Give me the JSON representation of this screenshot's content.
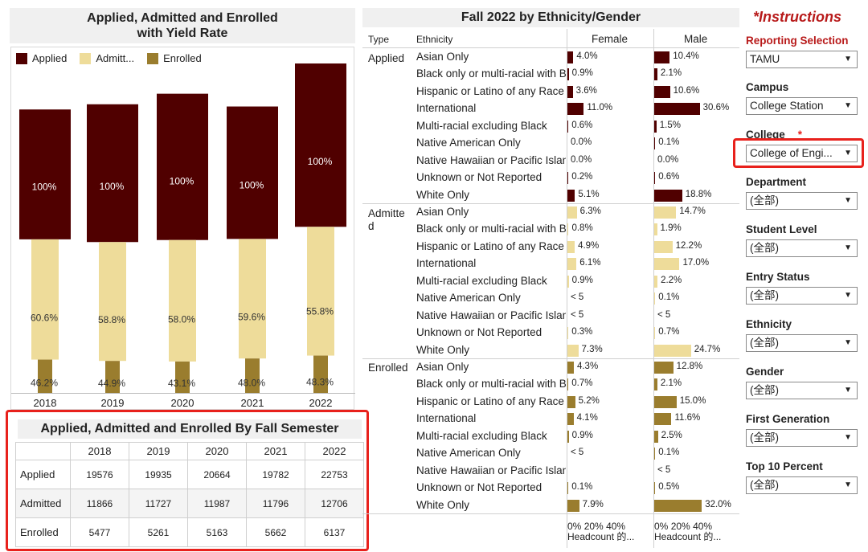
{
  "colors": {
    "applied": "#500000",
    "admitted": "#eedc9a",
    "enrolled": "#9a7d2e",
    "highlight": "#e8211c",
    "accent_red": "#b81a1a"
  },
  "left_chart": {
    "title_line1": "Applied, Admitted and Enrolled",
    "title_line2": "with Yield Rate",
    "legend": [
      "Applied",
      "Admitt...",
      "Enrolled"
    ]
  },
  "chart_data": [
    {
      "type": "bar",
      "title": "Applied, Admitted and Enrolled with Yield Rate",
      "categories": [
        "2018",
        "2019",
        "2020",
        "2021",
        "2022"
      ],
      "series": [
        {
          "name": "Applied",
          "values": [
            19576,
            19935,
            20664,
            19782,
            22753
          ],
          "labels": [
            "100%",
            "100%",
            "100%",
            "100%",
            "100%"
          ]
        },
        {
          "name": "Admitted",
          "values": [
            11866,
            11727,
            11987,
            11796,
            12706
          ],
          "labels": [
            "60.6%",
            "58.8%",
            "58.0%",
            "59.6%",
            "55.8%"
          ]
        },
        {
          "name": "Enrolled",
          "values": [
            5477,
            5261,
            5163,
            5662,
            6137
          ],
          "labels": [
            "46.2%",
            "44.9%",
            "43.1%",
            "48.0%",
            "48.3%"
          ]
        }
      ]
    },
    {
      "type": "bar",
      "title": "Fall 2022 by Ethnicity/Gender",
      "series_names": [
        "Female",
        "Male"
      ],
      "axis_ticks": [
        "0%",
        "20%",
        "40%"
      ],
      "axis_label": "Headcount 的...",
      "groups": [
        {
          "type": "Applied",
          "rows": [
            {
              "ethnicity": "Asian Only",
              "female": 4.0,
              "female_label": "4.0%",
              "male": 10.4,
              "male_label": "10.4%"
            },
            {
              "ethnicity": "Black only or multi-racial with Bl",
              "female": 0.9,
              "female_label": "0.9%",
              "male": 2.1,
              "male_label": "2.1%"
            },
            {
              "ethnicity": "Hispanic or Latino of any Race",
              "female": 3.6,
              "female_label": "3.6%",
              "male": 10.6,
              "male_label": "10.6%"
            },
            {
              "ethnicity": "International",
              "female": 11.0,
              "female_label": "11.0%",
              "male": 30.6,
              "male_label": "30.6%"
            },
            {
              "ethnicity": "Multi-racial excluding Black",
              "female": 0.6,
              "female_label": "0.6%",
              "male": 1.5,
              "male_label": "1.5%"
            },
            {
              "ethnicity": "Native American Only",
              "female": 0.0,
              "female_label": "0.0%",
              "male": 0.1,
              "male_label": "0.1%"
            },
            {
              "ethnicity": "Native Hawaiian or Pacific Islander",
              "female": 0.0,
              "female_label": "0.0%",
              "male": 0.0,
              "male_label": "0.0%"
            },
            {
              "ethnicity": "Unknown or Not Reported",
              "female": 0.2,
              "female_label": "0.2%",
              "male": 0.6,
              "male_label": "0.6%"
            },
            {
              "ethnicity": "White Only",
              "female": 5.1,
              "female_label": "5.1%",
              "male": 18.8,
              "male_label": "18.8%"
            }
          ]
        },
        {
          "type": "Admitted",
          "rows": [
            {
              "ethnicity": "Asian Only",
              "female": 6.3,
              "female_label": "6.3%",
              "male": 14.7,
              "male_label": "14.7%"
            },
            {
              "ethnicity": "Black only or multi-racial with Bl",
              "female": 0.8,
              "female_label": "0.8%",
              "male": 1.9,
              "male_label": "1.9%"
            },
            {
              "ethnicity": "Hispanic or Latino of any Race",
              "female": 4.9,
              "female_label": "4.9%",
              "male": 12.2,
              "male_label": "12.2%"
            },
            {
              "ethnicity": "International",
              "female": 6.1,
              "female_label": "6.1%",
              "male": 17.0,
              "male_label": "17.0%"
            },
            {
              "ethnicity": "Multi-racial excluding Black",
              "female": 0.9,
              "female_label": "0.9%",
              "male": 2.2,
              "male_label": "2.2%"
            },
            {
              "ethnicity": "Native American Only",
              "female": 0,
              "female_label": "< 5",
              "male": 0.1,
              "male_label": "0.1%"
            },
            {
              "ethnicity": "Native Hawaiian or Pacific Islander",
              "female": 0,
              "female_label": "< 5",
              "male": 0,
              "male_label": "< 5"
            },
            {
              "ethnicity": "Unknown or Not Reported",
              "female": 0.3,
              "female_label": "0.3%",
              "male": 0.7,
              "male_label": "0.7%"
            },
            {
              "ethnicity": "White Only",
              "female": 7.3,
              "female_label": "7.3%",
              "male": 24.7,
              "male_label": "24.7%"
            }
          ]
        },
        {
          "type": "Enrolled",
          "rows": [
            {
              "ethnicity": "Asian Only",
              "female": 4.3,
              "female_label": "4.3%",
              "male": 12.8,
              "male_label": "12.8%"
            },
            {
              "ethnicity": "Black only or multi-racial with Bl",
              "female": 0.7,
              "female_label": "0.7%",
              "male": 2.1,
              "male_label": "2.1%"
            },
            {
              "ethnicity": "Hispanic or Latino of any Race",
              "female": 5.2,
              "female_label": "5.2%",
              "male": 15.0,
              "male_label": "15.0%"
            },
            {
              "ethnicity": "International",
              "female": 4.1,
              "female_label": "4.1%",
              "male": 11.6,
              "male_label": "11.6%"
            },
            {
              "ethnicity": "Multi-racial excluding Black",
              "female": 0.9,
              "female_label": "0.9%",
              "male": 2.5,
              "male_label": "2.5%"
            },
            {
              "ethnicity": "Native American Only",
              "female": 0,
              "female_label": "< 5",
              "male": 0.1,
              "male_label": "0.1%"
            },
            {
              "ethnicity": "Native Hawaiian or Pacific Islander",
              "female": 0,
              "female_label": "",
              "male": 0,
              "male_label": "< 5"
            },
            {
              "ethnicity": "Unknown or Not Reported",
              "female": 0.1,
              "female_label": "0.1%",
              "male": 0.5,
              "male_label": "0.5%"
            },
            {
              "ethnicity": "White Only",
              "female": 7.9,
              "female_label": "7.9%",
              "male": 32.0,
              "male_label": "32.0%"
            }
          ]
        }
      ]
    }
  ],
  "semester_table": {
    "title": "Applied, Admitted and Enrolled By Fall Semester",
    "years": [
      "2018",
      "2019",
      "2020",
      "2021",
      "2022"
    ],
    "rows": [
      {
        "label": "Applied",
        "values": [
          "19576",
          "19935",
          "20664",
          "19782",
          "22753"
        ]
      },
      {
        "label": "Admitted",
        "values": [
          "11866",
          "11727",
          "11987",
          "11796",
          "12706"
        ]
      },
      {
        "label": "Enrolled",
        "values": [
          "5477",
          "5261",
          "5163",
          "5662",
          "6137"
        ]
      }
    ]
  },
  "ethnicity_panel": {
    "title": "Fall 2022 by Ethnicity/Gender",
    "col_type": "Type",
    "col_ethnicity": "Ethnicity",
    "col_female": "Female",
    "col_male": "Male",
    "type_labels": [
      "Applied",
      "Admitte\nd",
      "Enrolled"
    ]
  },
  "filters": {
    "instructions": "*Instructions",
    "items": [
      {
        "label": "Reporting Selection",
        "value": "TAMU"
      },
      {
        "label": "Campus",
        "value": "College Station"
      },
      {
        "label": "College",
        "value": "College of Engi...",
        "star": "*"
      },
      {
        "label": "Department",
        "value": "(全部)"
      },
      {
        "label": "Student Level",
        "value": "(全部)"
      },
      {
        "label": "Entry Status",
        "value": "(全部)"
      },
      {
        "label": "Ethnicity",
        "value": "(全部)"
      },
      {
        "label": "Gender",
        "value": "(全部)"
      },
      {
        "label": "First Generation",
        "value": "(全部)"
      },
      {
        "label": "Top 10 Percent",
        "value": "(全部)"
      }
    ],
    "arrow": "▼"
  }
}
